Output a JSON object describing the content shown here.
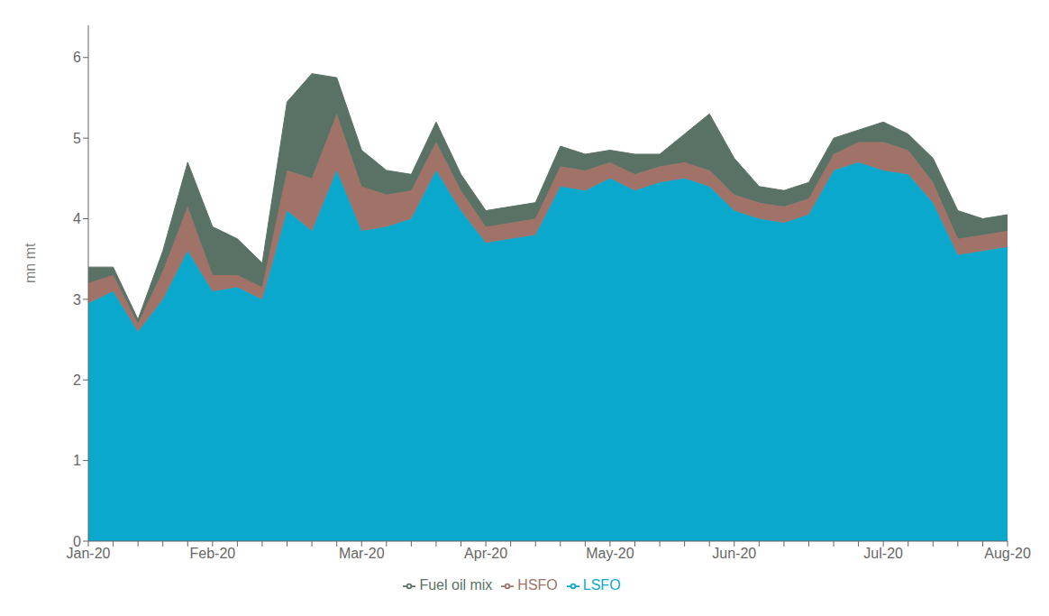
{
  "chart_data": {
    "type": "area",
    "stacked": true,
    "ylabel": "mn mt",
    "categories": [
      "Jan-20",
      null,
      null,
      null,
      null,
      "Feb-20",
      null,
      null,
      null,
      null,
      null,
      "Mar-20",
      null,
      null,
      null,
      null,
      "Apr-20",
      null,
      null,
      null,
      null,
      "May-20",
      null,
      null,
      null,
      null,
      "Jun-20",
      null,
      null,
      null,
      null,
      null,
      "Jul-20",
      null,
      null,
      null,
      null,
      "Aug-20"
    ],
    "series": [
      {
        "name": "LSFO",
        "color": "#0aa8cc",
        "values": [
          2.95,
          3.1,
          2.6,
          3.0,
          3.6,
          3.1,
          3.15,
          3.0,
          4.1,
          3.85,
          4.6,
          3.85,
          3.9,
          4.0,
          4.6,
          4.1,
          3.7,
          3.75,
          3.8,
          4.4,
          4.35,
          4.5,
          4.35,
          4.45,
          4.5,
          4.4,
          4.1,
          4.0,
          3.95,
          4.05,
          4.6,
          4.7,
          4.6,
          4.55,
          4.2,
          3.55,
          3.6,
          3.65
        ]
      },
      {
        "name": "HSFO",
        "color": "#a07268",
        "values": [
          0.25,
          0.2,
          0.1,
          0.35,
          0.55,
          0.2,
          0.15,
          0.15,
          0.5,
          0.65,
          0.7,
          0.55,
          0.4,
          0.35,
          0.35,
          0.25,
          0.2,
          0.2,
          0.2,
          0.25,
          0.25,
          0.2,
          0.2,
          0.2,
          0.2,
          0.2,
          0.2,
          0.2,
          0.2,
          0.2,
          0.2,
          0.25,
          0.35,
          0.3,
          0.25,
          0.2,
          0.2,
          0.2
        ]
      },
      {
        "name": "Fuel oil mix",
        "color": "#5a7265",
        "values": [
          0.2,
          0.1,
          0.05,
          0.25,
          0.55,
          0.6,
          0.45,
          0.3,
          0.85,
          1.3,
          0.45,
          0.45,
          0.3,
          0.2,
          0.25,
          0.2,
          0.2,
          0.2,
          0.2,
          0.25,
          0.2,
          0.15,
          0.25,
          0.15,
          0.35,
          0.7,
          0.45,
          0.2,
          0.2,
          0.2,
          0.2,
          0.15,
          0.25,
          0.2,
          0.3,
          0.35,
          0.2,
          0.2
        ]
      }
    ],
    "ylim": [
      0,
      6.4
    ],
    "yticks": [
      0,
      1,
      2,
      3,
      4,
      5,
      6
    ],
    "grid": false,
    "legend": "bottom"
  }
}
